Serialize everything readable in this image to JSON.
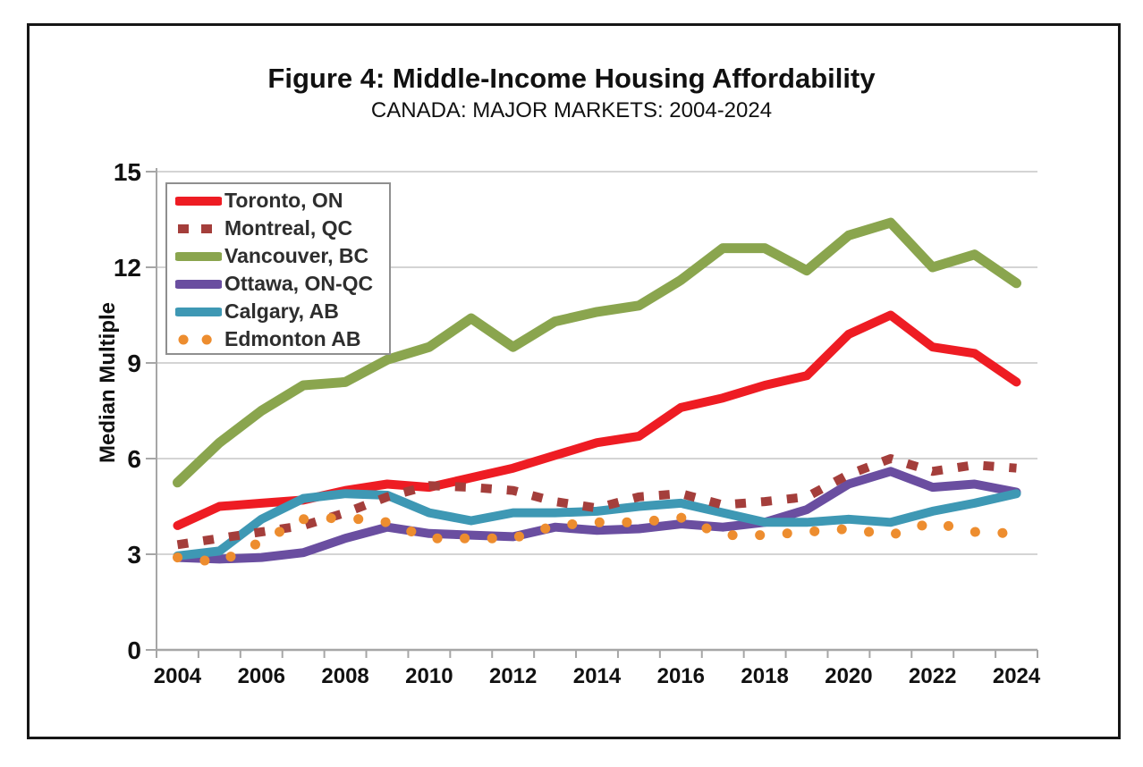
{
  "figure": {
    "title": "Figure 4: Middle-Income Housing Affordability",
    "subtitle": "CANADA: MAJOR MARKETS: 2004-2024"
  },
  "chart_data": {
    "type": "line",
    "title": "Figure 4: Middle-Income Housing Affordability",
    "subtitle": "CANADA: MAJOR MARKETS: 2004-2024",
    "xlabel": "",
    "ylabel": "Median Multiple",
    "x": [
      2004,
      2005,
      2006,
      2007,
      2008,
      2009,
      2010,
      2011,
      2012,
      2013,
      2014,
      2015,
      2016,
      2017,
      2018,
      2019,
      2020,
      2021,
      2022,
      2023,
      2024
    ],
    "x_tick_labels": [
      "2004",
      "2006",
      "2008",
      "2010",
      "2012",
      "2014",
      "2016",
      "2018",
      "2020",
      "2022",
      "2024"
    ],
    "yticks": [
      0,
      3,
      6,
      9,
      12,
      15
    ],
    "y_tick_labels": [
      "0",
      "3",
      "6",
      "9",
      "12",
      "15"
    ],
    "ylim": [
      0,
      15
    ],
    "grid": "horizontal",
    "legend_position": "top-left-inside",
    "axis_color": "#a6a6a6",
    "gridline_color": "#c6c6c6",
    "text_color": "#111111",
    "draw_order": [
      2,
      0,
      3,
      4,
      1,
      5
    ],
    "series": [
      {
        "name": "Toronto, ON",
        "color": "#ee1c23",
        "style": "solid",
        "width": 10,
        "values": [
          3.9,
          4.5,
          4.6,
          4.7,
          5.0,
          5.2,
          5.1,
          5.4,
          5.7,
          6.1,
          6.5,
          6.7,
          7.6,
          7.9,
          8.3,
          8.6,
          9.9,
          10.5,
          9.5,
          9.3,
          8.4
        ]
      },
      {
        "name": "Montreal, QC",
        "color": "#a43e3b",
        "style": "dashed",
        "width": 10,
        "values": [
          3.3,
          3.5,
          3.7,
          3.9,
          4.3,
          4.8,
          5.15,
          5.1,
          5.0,
          4.65,
          4.45,
          4.8,
          4.9,
          4.55,
          4.65,
          4.8,
          5.5,
          6.0,
          5.6,
          5.8,
          5.7
        ]
      },
      {
        "name": "Vancouver, BC",
        "color": "#8aa54e",
        "style": "solid",
        "width": 11,
        "values": [
          5.25,
          6.5,
          7.5,
          8.3,
          8.4,
          9.1,
          9.5,
          10.4,
          9.5,
          10.3,
          10.6,
          10.8,
          11.6,
          12.6,
          12.6,
          11.9,
          13.0,
          13.4,
          12.0,
          12.4,
          11.5
        ]
      },
      {
        "name": "Ottawa, ON-QC",
        "color": "#6a4ea0",
        "style": "solid",
        "width": 10,
        "values": [
          2.9,
          2.85,
          2.9,
          3.05,
          3.5,
          3.85,
          3.65,
          3.6,
          3.55,
          3.85,
          3.75,
          3.8,
          3.95,
          3.85,
          4.0,
          4.4,
          5.2,
          5.6,
          5.1,
          5.2,
          4.95
        ]
      },
      {
        "name": "Calgary, AB",
        "color": "#3e98b4",
        "style": "solid",
        "width": 10,
        "values": [
          2.95,
          3.1,
          4.1,
          4.75,
          4.9,
          4.85,
          4.3,
          4.05,
          4.3,
          4.3,
          4.35,
          4.5,
          4.6,
          4.3,
          4.0,
          4.0,
          4.1,
          4.0,
          4.35,
          4.6,
          4.9
        ]
      },
      {
        "name": "Edmonton AB",
        "color": "#ed8d2f",
        "style": "dotted",
        "width": 11,
        "values": [
          2.9,
          2.75,
          3.4,
          4.1,
          4.15,
          4.0,
          3.5,
          3.5,
          3.5,
          3.9,
          4.0,
          4.0,
          4.15,
          3.6,
          3.6,
          3.7,
          3.8,
          3.6,
          4.0,
          3.7,
          3.65
        ]
      }
    ]
  }
}
